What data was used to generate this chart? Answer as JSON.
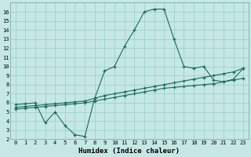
{
  "xlabel": "Humidex (Indice chaleur)",
  "bg_color": "#c5e8e5",
  "grid_color": "#9ecfcc",
  "line_color": "#1a6b5a",
  "xlim": [
    -0.5,
    23.5
  ],
  "ylim": [
    2,
    17
  ],
  "xticks": [
    0,
    1,
    2,
    3,
    4,
    5,
    6,
    7,
    8,
    9,
    10,
    11,
    12,
    13,
    14,
    15,
    16,
    17,
    18,
    19,
    20,
    21,
    22,
    23
  ],
  "yticks": [
    2,
    3,
    4,
    5,
    6,
    7,
    8,
    9,
    10,
    11,
    12,
    13,
    14,
    15,
    16
  ],
  "line_upper_x": [
    0,
    1,
    2,
    3,
    4,
    5,
    6,
    7,
    8,
    9,
    10,
    11,
    12,
    13,
    14,
    15,
    16,
    17,
    18,
    19,
    20,
    21,
    22,
    23
  ],
  "line_upper_y": [
    5.8,
    5.9,
    6.0,
    3.8,
    5.0,
    3.5,
    2.5,
    2.3,
    6.5,
    9.5,
    10.0,
    12.2,
    14.0,
    16.0,
    16.3,
    16.3,
    13.0,
    10.0,
    9.8,
    10.0,
    8.5,
    8.3,
    8.6,
    9.8
  ],
  "line_mid_x": [
    0,
    1,
    2,
    3,
    4,
    5,
    6,
    7,
    8,
    9,
    10,
    11,
    12,
    13,
    14,
    15,
    16,
    17,
    18,
    19,
    20,
    21,
    22,
    23
  ],
  "line_mid_y": [
    5.5,
    5.6,
    5.7,
    5.8,
    5.9,
    6.0,
    6.1,
    6.2,
    6.5,
    6.8,
    7.0,
    7.2,
    7.4,
    7.6,
    7.8,
    8.0,
    8.2,
    8.4,
    8.6,
    8.8,
    9.0,
    9.2,
    9.4,
    9.8
  ],
  "line_low_x": [
    0,
    1,
    2,
    3,
    4,
    5,
    6,
    7,
    8,
    9,
    10,
    11,
    12,
    13,
    14,
    15,
    16,
    17,
    18,
    19,
    20,
    21,
    22,
    23
  ],
  "line_low_y": [
    5.3,
    5.4,
    5.5,
    5.6,
    5.7,
    5.8,
    5.9,
    6.0,
    6.2,
    6.4,
    6.6,
    6.8,
    7.0,
    7.2,
    7.4,
    7.6,
    7.7,
    7.8,
    7.9,
    8.0,
    8.1,
    8.3,
    8.5,
    8.7
  ]
}
